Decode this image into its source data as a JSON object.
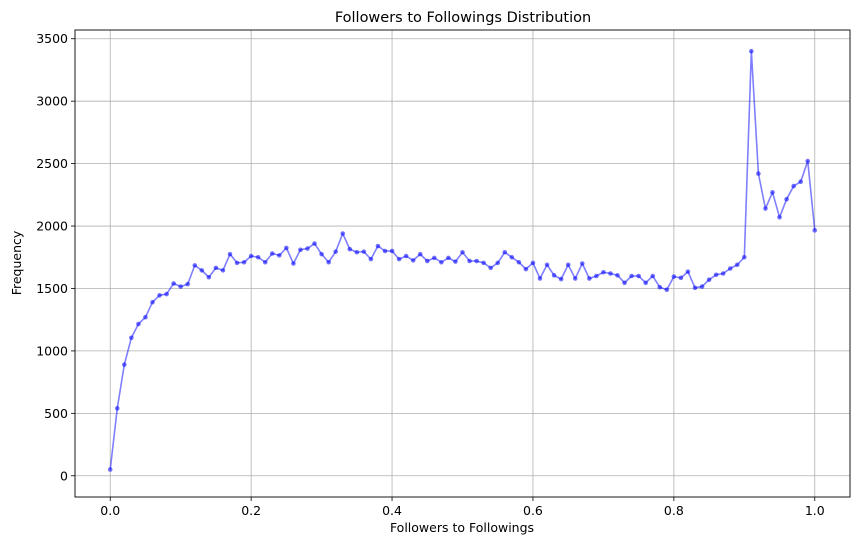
{
  "chart_data": {
    "type": "line",
    "title": "Followers to Followings Distribution",
    "xlabel": "Followers to Followings",
    "ylabel": "Frequency",
    "xlim": [
      -0.05,
      1.05
    ],
    "ylim": [
      -170,
      3570
    ],
    "xticks": [
      0.0,
      0.2,
      0.4,
      0.6,
      0.8,
      1.0
    ],
    "xtick_labels": [
      "0.0",
      "0.2",
      "0.4",
      "0.6",
      "0.8",
      "1.0"
    ],
    "yticks": [
      0,
      500,
      1000,
      1500,
      2000,
      2500,
      3000,
      3500
    ],
    "ytick_labels": [
      "0",
      "500",
      "1000",
      "1500",
      "2000",
      "2500",
      "3000",
      "3500"
    ],
    "grid": true,
    "line_color": "#0000ff",
    "series": [
      {
        "x": [
          0.0,
          0.01,
          0.02,
          0.03,
          0.04,
          0.05,
          0.06,
          0.07,
          0.08,
          0.09,
          0.1,
          0.11,
          0.12,
          0.13,
          0.14,
          0.15,
          0.16,
          0.17,
          0.18,
          0.19,
          0.2,
          0.21,
          0.22,
          0.23,
          0.24,
          0.25,
          0.26,
          0.27,
          0.28,
          0.29,
          0.3,
          0.31,
          0.32,
          0.33,
          0.34,
          0.35,
          0.36,
          0.37,
          0.38,
          0.39,
          0.4,
          0.41,
          0.42,
          0.43,
          0.44,
          0.45,
          0.46,
          0.47,
          0.48,
          0.49,
          0.5,
          0.51,
          0.52,
          0.53,
          0.54,
          0.55,
          0.56,
          0.57,
          0.58,
          0.59,
          0.6,
          0.61,
          0.62,
          0.63,
          0.64,
          0.65,
          0.66,
          0.67,
          0.68,
          0.69,
          0.7,
          0.71,
          0.72,
          0.73,
          0.74,
          0.75,
          0.76,
          0.77,
          0.78,
          0.79,
          0.8,
          0.81,
          0.82,
          0.83,
          0.84,
          0.85,
          0.86,
          0.87,
          0.88,
          0.89,
          0.9,
          0.91,
          0.92,
          0.93,
          0.94,
          0.95,
          0.96,
          0.97,
          0.98,
          0.99,
          1.0
        ],
        "y": [
          50,
          540,
          890,
          1105,
          1215,
          1270,
          1390,
          1445,
          1455,
          1540,
          1515,
          1535,
          1685,
          1645,
          1590,
          1665,
          1645,
          1775,
          1705,
          1710,
          1760,
          1750,
          1710,
          1780,
          1765,
          1825,
          1700,
          1810,
          1820,
          1860,
          1775,
          1710,
          1795,
          1940,
          1815,
          1790,
          1795,
          1735,
          1840,
          1800,
          1800,
          1735,
          1760,
          1725,
          1775,
          1720,
          1745,
          1710,
          1745,
          1715,
          1790,
          1720,
          1720,
          1705,
          1665,
          1705,
          1790,
          1750,
          1710,
          1655,
          1705,
          1580,
          1690,
          1605,
          1575,
          1690,
          1580,
          1700,
          1580,
          1600,
          1630,
          1620,
          1605,
          1545,
          1600,
          1600,
          1545,
          1600,
          1510,
          1490,
          1595,
          1585,
          1635,
          1505,
          1515,
          1570,
          1610,
          1620,
          1660,
          1690,
          1750,
          3400,
          2420,
          2140,
          2270,
          2070,
          2215,
          2320,
          2355,
          2520,
          1965
        ]
      }
    ]
  }
}
